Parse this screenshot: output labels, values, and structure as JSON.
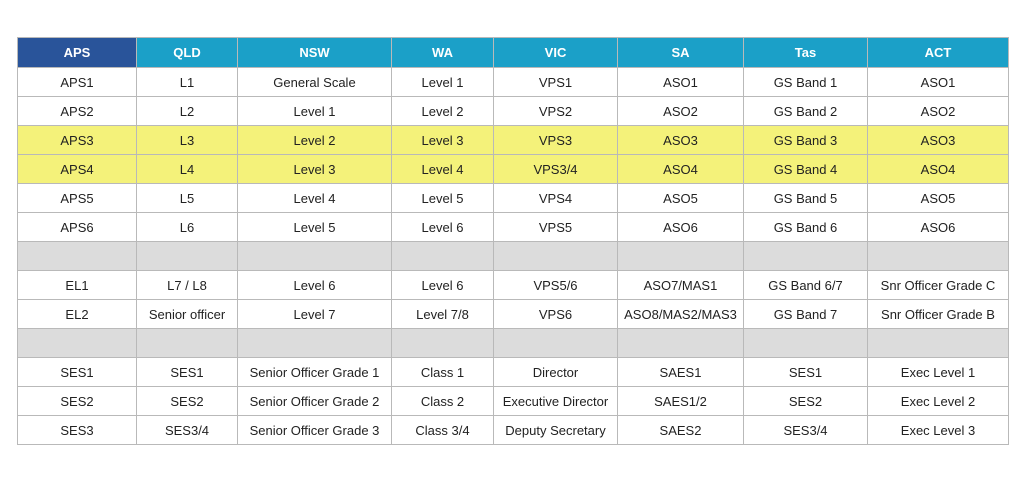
{
  "colors": {
    "header_first": "#29549a",
    "header": "#1ba0c8",
    "highlight": "#f4f27a",
    "spacer": "#dcdcdc"
  },
  "headers": [
    "APS",
    "QLD",
    "NSW",
    "WA",
    "VIC",
    "SA",
    "Tas",
    "ACT"
  ],
  "rows": [
    {
      "type": "data",
      "highlight": false,
      "cells": [
        "APS1",
        "L1",
        "General Scale",
        "Level 1",
        "VPS1",
        "ASO1",
        "GS Band 1",
        "ASO1"
      ]
    },
    {
      "type": "data",
      "highlight": false,
      "cells": [
        "APS2",
        "L2",
        "Level 1",
        "Level 2",
        "VPS2",
        "ASO2",
        "GS Band 2",
        "ASO2"
      ]
    },
    {
      "type": "data",
      "highlight": true,
      "cells": [
        "APS3",
        "L3",
        "Level 2",
        "Level 3",
        "VPS3",
        "ASO3",
        "GS Band 3",
        "ASO3"
      ]
    },
    {
      "type": "data",
      "highlight": true,
      "cells": [
        "APS4",
        "L4",
        "Level 3",
        "Level 4",
        "VPS3/4",
        "ASO4",
        "GS Band 4",
        "ASO4"
      ]
    },
    {
      "type": "data",
      "highlight": false,
      "cells": [
        "APS5",
        "L5",
        "Level 4",
        "Level 5",
        "VPS4",
        "ASO5",
        "GS Band 5",
        "ASO5"
      ]
    },
    {
      "type": "data",
      "highlight": false,
      "cells": [
        "APS6",
        "L6",
        "Level 5",
        "Level 6",
        "VPS5",
        "ASO6",
        "GS Band 6",
        "ASO6"
      ]
    },
    {
      "type": "gap"
    },
    {
      "type": "data",
      "highlight": false,
      "cells": [
        "EL1",
        "L7 / L8",
        "Level 6",
        "Level 6",
        "VPS5/6",
        "ASO7/MAS1",
        "GS Band 6/7",
        "Snr Officer Grade C"
      ]
    },
    {
      "type": "data",
      "highlight": false,
      "cells": [
        "EL2",
        "Senior officer",
        "Level 7",
        "Level 7/8",
        "VPS6",
        "ASO8/MAS2/MAS3",
        "GS Band 7",
        "Snr Officer Grade B"
      ]
    },
    {
      "type": "gap"
    },
    {
      "type": "data",
      "highlight": false,
      "cells": [
        "SES1",
        "SES1",
        "Senior Officer Grade 1",
        "Class 1",
        "Director",
        "SAES1",
        "SES1",
        "Exec Level 1"
      ]
    },
    {
      "type": "data",
      "highlight": false,
      "cells": [
        "SES2",
        "SES2",
        "Senior Officer Grade 2",
        "Class 2",
        "Executive Director",
        "SAES1/2",
        "SES2",
        "Exec Level 2"
      ]
    },
    {
      "type": "data",
      "highlight": false,
      "cells": [
        "SES3",
        "SES3/4",
        "Senior Officer Grade 3",
        "Class 3/4",
        "Deputy Secretary",
        "SAES2",
        "SES3/4",
        "Exec Level 3"
      ]
    }
  ]
}
